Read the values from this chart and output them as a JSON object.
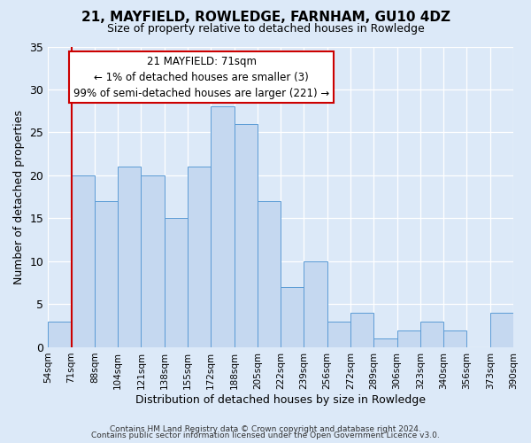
{
  "title": "21, MAYFIELD, ROWLEDGE, FARNHAM, GU10 4DZ",
  "subtitle": "Size of property relative to detached houses in Rowledge",
  "xlabel": "Distribution of detached houses by size in Rowledge",
  "ylabel": "Number of detached properties",
  "bin_labels": [
    "54sqm",
    "71sqm",
    "88sqm",
    "104sqm",
    "121sqm",
    "138sqm",
    "155sqm",
    "172sqm",
    "188sqm",
    "205sqm",
    "222sqm",
    "239sqm",
    "256sqm",
    "272sqm",
    "289sqm",
    "306sqm",
    "323sqm",
    "340sqm",
    "356sqm",
    "373sqm",
    "390sqm"
  ],
  "counts": [
    3,
    20,
    17,
    21,
    20,
    15,
    21,
    28,
    26,
    17,
    7,
    10,
    3,
    4,
    1,
    2,
    3,
    2,
    0,
    4
  ],
  "bar_color": "#c5d8f0",
  "bar_edge_color": "#5b9bd5",
  "highlight_index": 1,
  "highlight_color": "#cc0000",
  "annotation_title": "21 MAYFIELD: 71sqm",
  "annotation_line1": "← 1% of detached houses are smaller (3)",
  "annotation_line2": "99% of semi-detached houses are larger (221) →",
  "annotation_box_color": "#ffffff",
  "annotation_box_edge": "#cc0000",
  "ylim": [
    0,
    35
  ],
  "yticks": [
    0,
    5,
    10,
    15,
    20,
    25,
    30,
    35
  ],
  "bg_color": "#dce9f8",
  "plot_bg_color": "#dce9f8",
  "footer1": "Contains HM Land Registry data © Crown copyright and database right 2024.",
  "footer2": "Contains public sector information licensed under the Open Government Licence v3.0."
}
